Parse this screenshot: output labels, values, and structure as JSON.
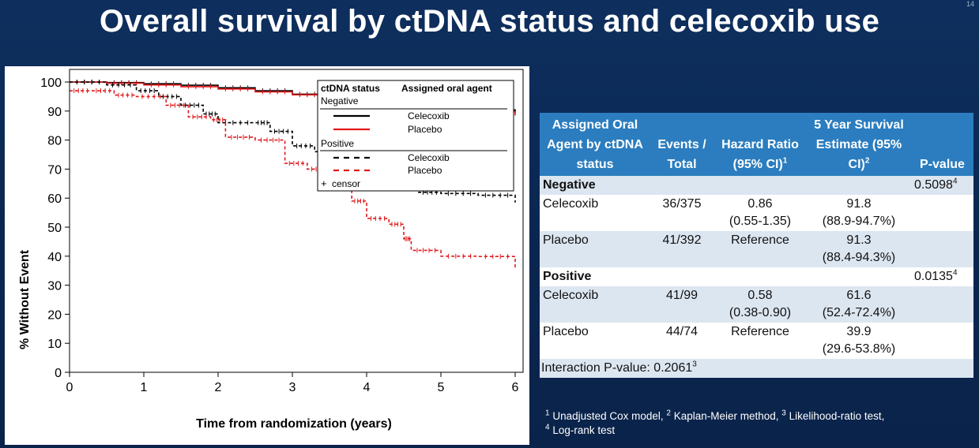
{
  "slide": {
    "title": "Overall survival by ctDNA status and celecoxib use",
    "page_number": "14"
  },
  "chart_data": {
    "type": "line",
    "title": "",
    "xlabel": "Time from randomization (years)",
    "ylabel": "% Without Event",
    "xlim": [
      0,
      6
    ],
    "ylim": [
      0,
      100
    ],
    "x_ticks": [
      "0",
      "1",
      "2",
      "3",
      "4",
      "5",
      "6"
    ],
    "y_ticks": [
      "0",
      "10",
      "20",
      "30",
      "40",
      "50",
      "60",
      "70",
      "80",
      "90",
      "100"
    ],
    "grid": false,
    "legend_position": "top-right",
    "legend": {
      "header_status": "ctDNA status",
      "header_agent": "Assigned oral agent",
      "group_negative": "Negative",
      "group_positive": "Positive",
      "celecoxib": "Celecoxib",
      "placebo": "Placebo",
      "censor_symbol": "+",
      "censor": "censor"
    },
    "series": [
      {
        "name": "Negative Celecoxib",
        "color": "#000000",
        "dash": "solid",
        "x": [
          0,
          0.5,
          1.0,
          1.5,
          2.0,
          2.5,
          3.0,
          3.5,
          4.0,
          4.5,
          5.0,
          5.5,
          6.0
        ],
        "y": [
          100,
          99.8,
          99.4,
          98.9,
          98.0,
          97.0,
          95.8,
          94.8,
          93.8,
          92.6,
          91.8,
          90.4,
          89.5
        ]
      },
      {
        "name": "Negative Placebo",
        "color": "#e0191b",
        "dash": "solid",
        "x": [
          0,
          0.5,
          1.0,
          1.5,
          2.0,
          2.5,
          3.0,
          3.5,
          4.0,
          4.5,
          5.0,
          5.5,
          6.0
        ],
        "y": [
          100,
          99.6,
          99.0,
          98.4,
          97.6,
          96.6,
          95.6,
          94.8,
          93.4,
          92.0,
          91.3,
          89.8,
          88.5
        ]
      },
      {
        "name": "Positive Celecoxib",
        "color": "#000000",
        "dash": "dashed",
        "x": [
          0,
          0.5,
          0.9,
          1.2,
          1.5,
          1.8,
          2.0,
          2.5,
          2.7,
          3.0,
          3.3,
          3.6,
          3.8,
          4.0,
          4.3,
          4.5,
          4.7,
          5.0,
          5.5,
          6.0
        ],
        "y": [
          100,
          99,
          97,
          95,
          92,
          89,
          86,
          86,
          83,
          78,
          76,
          73,
          72,
          71,
          70,
          67,
          62,
          61.6,
          61,
          58.5
        ]
      },
      {
        "name": "Positive Placebo",
        "color": "#e0191b",
        "dash": "dashed",
        "x": [
          0,
          0.3,
          0.6,
          0.9,
          1.3,
          1.6,
          1.9,
          2.1,
          2.5,
          2.9,
          3.2,
          3.5,
          3.8,
          4.0,
          4.3,
          4.5,
          4.6,
          5.0,
          5.5,
          6.0
        ],
        "y": [
          97,
          97,
          95.5,
          95,
          92,
          88,
          87,
          81,
          80,
          72,
          70,
          64,
          59,
          53,
          51,
          46,
          42,
          40,
          39.9,
          36
        ]
      }
    ]
  },
  "table": {
    "headers": {
      "agent": "Assigned Oral Agent by ctDNA status",
      "events": "Events / Total",
      "hr": "Hazard Ratio (95% CI)",
      "hr_sup": "1",
      "surv": "5 Year Survival Estimate (95% CI)",
      "surv_sup": "2",
      "pvalue": "P-value"
    },
    "negative": {
      "label": "Negative",
      "pvalue": "0.5098",
      "pvalue_sup": "4",
      "celecoxib": {
        "label": "Celecoxib",
        "events": "36/375",
        "hr": "0.86",
        "hr_ci": "(0.55-1.35)",
        "surv": "91.8",
        "surv_ci": "(88.9-94.7%)"
      },
      "placebo": {
        "label": "Placebo",
        "events": "41/392",
        "hr": "Reference",
        "surv": "91.3",
        "surv_ci": "(88.4-94.3%)"
      }
    },
    "positive": {
      "label": "Positive",
      "pvalue": "0.0135",
      "pvalue_sup": "4",
      "celecoxib": {
        "label": "Celecoxib",
        "events": "41/99",
        "hr": "0.58",
        "hr_ci": "(0.38-0.90)",
        "surv": "61.6",
        "surv_ci": "(52.4-72.4%)"
      },
      "placebo": {
        "label": "Placebo",
        "events": "44/74",
        "hr": "Reference",
        "surv": "39.9",
        "surv_ci": "(29.6-53.8%)"
      }
    },
    "interaction": "Interaction P-value: 0.2061",
    "interaction_sup": "3"
  },
  "footnotes": {
    "n1": "1",
    "t1": " Unadjusted Cox model, ",
    "n2": "2",
    "t2": " Kaplan-Meier method, ",
    "n3": "3",
    "t3": " Likelihood-ratio test,",
    "n4": "4",
    "t4": " Log-rank test"
  }
}
